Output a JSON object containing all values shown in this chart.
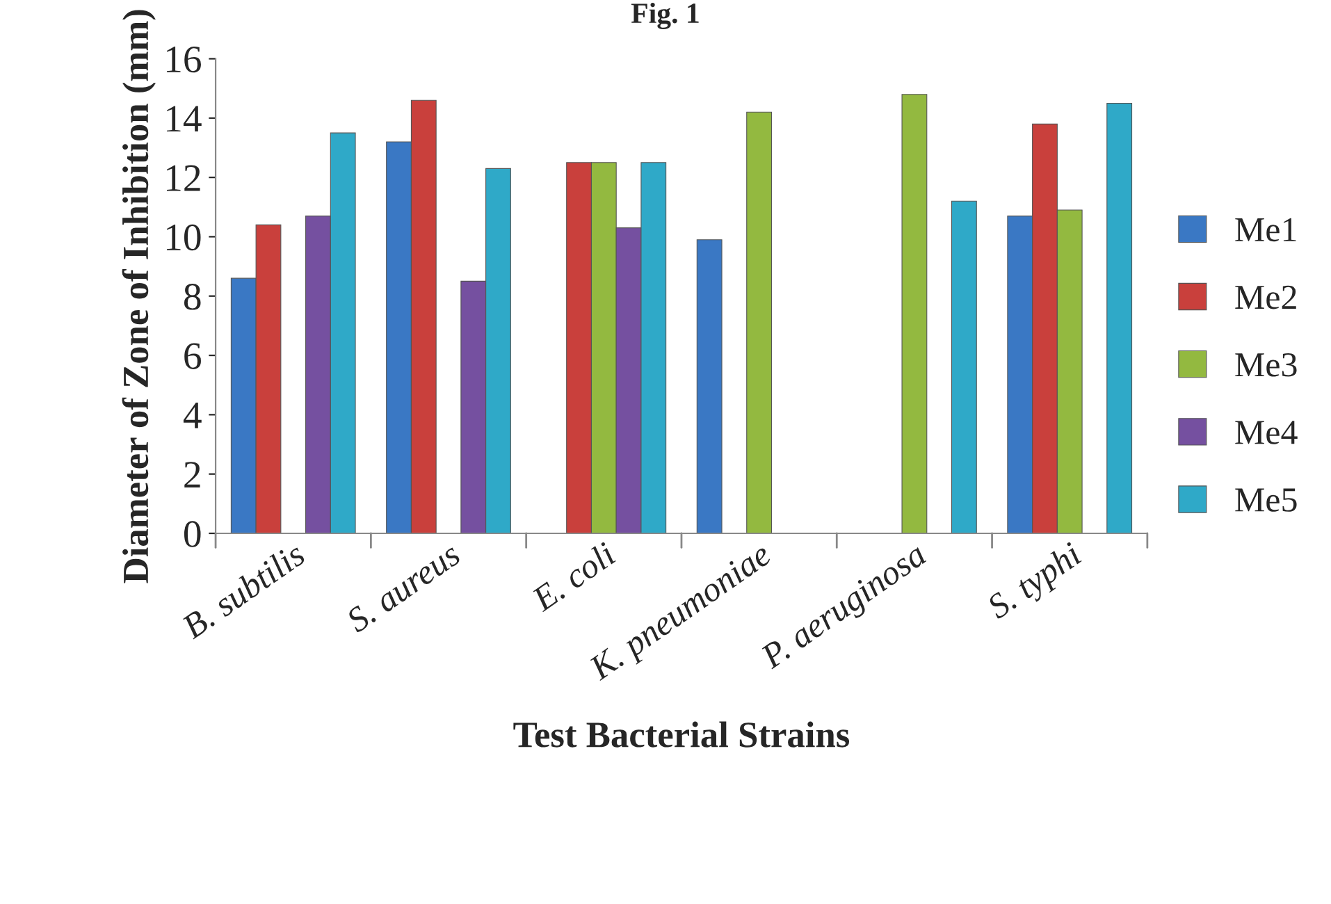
{
  "chart_data": {
    "type": "bar",
    "title": "Fig. 1",
    "xlabel": "Test Bacterial Strains",
    "ylabel": "Diameter of Zone of Inhibition (mm)",
    "categories": [
      "B. subtilis",
      "S. aureus",
      "E. coli",
      "K. pneumoniae",
      "P. aeruginosa",
      "S. typhi"
    ],
    "series": [
      {
        "name": "Me1",
        "color": "#3a78c4",
        "values": [
          8.6,
          13.2,
          null,
          9.9,
          null,
          10.7
        ]
      },
      {
        "name": "Me2",
        "color": "#c9403c",
        "values": [
          10.4,
          14.6,
          12.5,
          null,
          null,
          13.8
        ]
      },
      {
        "name": "Me3",
        "color": "#93b940",
        "values": [
          null,
          null,
          12.5,
          14.2,
          14.8,
          10.9
        ]
      },
      {
        "name": "Me4",
        "color": "#7550a0",
        "values": [
          10.7,
          8.5,
          10.3,
          null,
          null,
          null
        ]
      },
      {
        "name": "Me5",
        "color": "#2fa9c8",
        "values": [
          13.5,
          12.3,
          12.5,
          null,
          11.2,
          14.5
        ]
      }
    ],
    "ylim": [
      0,
      16
    ],
    "yticks": [
      0,
      2,
      4,
      6,
      8,
      10,
      12,
      14,
      16
    ],
    "grid": false,
    "legend": "right"
  }
}
